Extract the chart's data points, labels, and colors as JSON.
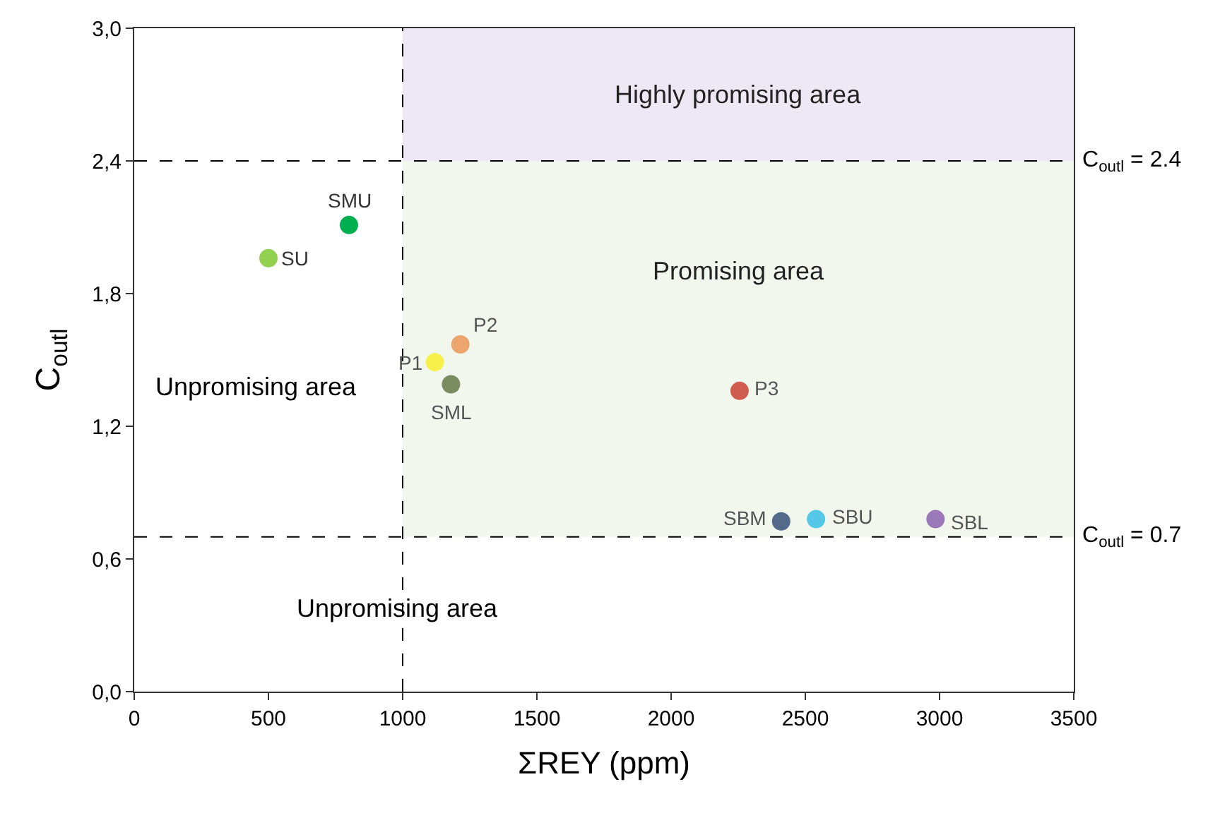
{
  "chart_data": {
    "type": "scatter",
    "xlabel": "ΣREY (ppm)",
    "ylabel": "C$_{outl}$",
    "xlim": [
      0,
      3500
    ],
    "xticks": [
      0,
      500,
      1000,
      1500,
      2000,
      2500,
      3000,
      3500
    ],
    "ylim": [
      0,
      3.0
    ],
    "yticks": [
      {
        "value": 0,
        "label": "0,0"
      },
      {
        "value": 0.6,
        "label": "0,6"
      },
      {
        "value": 1.2,
        "label": "1,2"
      },
      {
        "value": 1.8,
        "label": "1,8"
      },
      {
        "value": 2.4,
        "label": "2,4"
      },
      {
        "value": 3.0,
        "label": "3,0"
      }
    ],
    "grid": false,
    "legend": false,
    "marker": "circle",
    "series": [
      {
        "name": "SU",
        "color": "#92d050",
        "x": [
          500
        ],
        "values": [
          1.96
        ]
      },
      {
        "name": "SMU",
        "color": "#00b050",
        "x": [
          800
        ],
        "values": [
          2.11
        ]
      },
      {
        "name": "P1",
        "color": "#f5f04a",
        "x": [
          1120
        ],
        "values": [
          1.49
        ]
      },
      {
        "name": "P2",
        "color": "#eda56e",
        "x": [
          1215
        ],
        "values": [
          1.57
        ]
      },
      {
        "name": "SML",
        "color": "#7a8c60",
        "x": [
          1180
        ],
        "values": [
          1.39
        ]
      },
      {
        "name": "P3",
        "color": "#d05c50",
        "x": [
          2255
        ],
        "values": [
          1.36
        ]
      },
      {
        "name": "SBM",
        "color": "#536a8a",
        "x": [
          2410
        ],
        "values": [
          0.77
        ]
      },
      {
        "name": "SBU",
        "color": "#55c8e8",
        "x": [
          2540
        ],
        "values": [
          0.78
        ]
      },
      {
        "name": "SBL",
        "color": "#9b79b8",
        "x": [
          2985
        ],
        "values": [
          0.78
        ]
      }
    ],
    "ref_lines": [
      {
        "axis": "x",
        "value": 1000,
        "color": "#000000",
        "line_style": "dashed"
      },
      {
        "axis": "y",
        "value": 2.4,
        "label": "C$_{outl}$ = 2.4",
        "color": "#000000",
        "line_style": "dashed"
      },
      {
        "axis": "y",
        "value": 0.7,
        "label": "C$_{outl}$ = 0.7",
        "color": "#000000",
        "line_style": "dashed"
      }
    ],
    "bands": [
      {
        "axis": "y",
        "from": 2.4,
        "to": 3.0,
        "label": "Highly promising area",
        "color": "#eee8f4"
      },
      {
        "axis": "y",
        "from": 0.7,
        "to": 2.4,
        "label": "Promising area",
        "color": "#f2f7ee"
      }
    ],
    "annotations": [
      "Unpromising area",
      "Unpromising area"
    ]
  }
}
